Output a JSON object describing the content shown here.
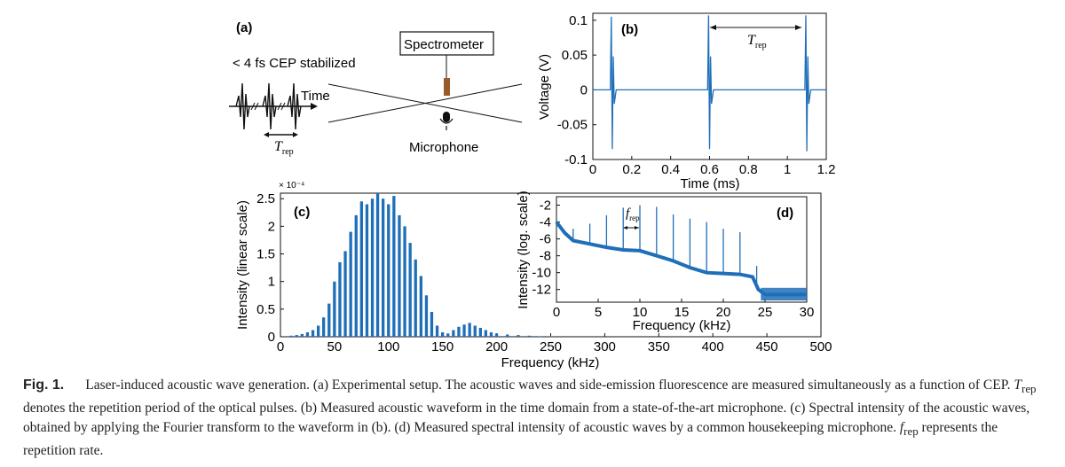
{
  "panel_a": {
    "label": "(a)",
    "cep_text": "< 4 fs CEP stabilized",
    "time_label": "Time",
    "trep_symbol": "T",
    "trep_sub": "rep",
    "spectrometer_label": "Spectrometer",
    "microphone_label": "Microphone",
    "icons": [
      "pulse-train-icon",
      "spectrometer-probe-icon",
      "microphone-icon"
    ]
  },
  "chart_data": [
    {
      "id": "b",
      "type": "line",
      "label": "(b)",
      "xlabel": "Time (ms)",
      "ylabel": "Voltage (V)",
      "xlim": [
        0,
        1.2
      ],
      "ylim": [
        -0.1,
        0.11
      ],
      "xticks": [
        "0",
        "0.2",
        "0.4",
        "0.6",
        "0.8",
        "1",
        "1.2"
      ],
      "yticks": [
        "0.1",
        "0.05",
        "0",
        "-0.05",
        "-0.1"
      ],
      "annotation": {
        "symbol": "T",
        "sub": "rep"
      },
      "series": [
        {
          "x": [
            0,
            0.09,
            0.095,
            0.1,
            0.105,
            0.11,
            0.12,
            0.59,
            0.595,
            0.6,
            0.605,
            0.61,
            0.62,
            1.09,
            1.095,
            1.1,
            1.105,
            1.11,
            1.12,
            1.2
          ],
          "y": [
            0,
            0,
            0.105,
            -0.085,
            0.048,
            -0.02,
            0,
            0,
            0.107,
            -0.085,
            0.048,
            -0.02,
            0,
            0,
            0.107,
            -0.088,
            0.048,
            -0.02,
            0,
            0
          ]
        }
      ],
      "color": "#1f6fb8"
    },
    {
      "id": "c",
      "type": "bar",
      "label": "(c)",
      "xlabel": "Frequency (kHz)",
      "ylabel": "Intensity (linear scale)",
      "y_exponent": "× 10⁻⁴",
      "xlim": [
        0,
        500
      ],
      "ylim": [
        0,
        2.6
      ],
      "xticks": [
        "0",
        "50",
        "100",
        "150",
        "200",
        "250",
        "300",
        "350",
        "400",
        "450",
        "500"
      ],
      "yticks": [
        "0",
        "0.5",
        "1",
        "1.5",
        "2",
        "2.5"
      ],
      "x": [
        10,
        15,
        20,
        25,
        30,
        35,
        40,
        45,
        50,
        55,
        60,
        65,
        70,
        75,
        80,
        85,
        90,
        95,
        100,
        105,
        110,
        115,
        120,
        125,
        130,
        135,
        140,
        145,
        150,
        155,
        160,
        165,
        170,
        175,
        180,
        185,
        190,
        195,
        200,
        210,
        220,
        230,
        240,
        250
      ],
      "values": [
        0.02,
        0.03,
        0.05,
        0.08,
        0.12,
        0.2,
        0.35,
        0.6,
        1.0,
        1.35,
        1.55,
        1.9,
        2.2,
        2.45,
        2.4,
        2.5,
        2.6,
        2.5,
        2.4,
        2.55,
        2.2,
        2.0,
        1.7,
        1.4,
        1.1,
        0.75,
        0.45,
        0.2,
        0.08,
        0.06,
        0.12,
        0.18,
        0.22,
        0.25,
        0.2,
        0.16,
        0.12,
        0.08,
        0.06,
        0.04,
        0.03,
        0.02,
        0.01,
        0.01
      ],
      "color": "#1f6fb8"
    },
    {
      "id": "d",
      "type": "line",
      "label": "(d)",
      "xlabel": "Frequency (kHz)",
      "ylabel": "Intensity (log. scale)",
      "xlim": [
        0,
        30
      ],
      "ylim": [
        -13.5,
        -1
      ],
      "xticks": [
        "0",
        "5",
        "10",
        "15",
        "20",
        "25",
        "30"
      ],
      "yticks": [
        "-2",
        "-4",
        "-6",
        "-8",
        "-10",
        "-12"
      ],
      "annotation": {
        "symbol": "f",
        "sub": "rep"
      },
      "baseline": {
        "x": [
          0,
          1,
          2,
          4,
          6,
          8,
          10,
          12,
          14,
          16,
          18,
          20,
          22,
          23.5,
          24.2,
          25,
          30
        ],
        "y": [
          -4.0,
          -5.3,
          -6.2,
          -6.6,
          -7.0,
          -7.3,
          -7.4,
          -8.0,
          -8.6,
          -9.4,
          -10.0,
          -10.1,
          -10.2,
          -10.5,
          -12.0,
          -12.6,
          -12.6
        ]
      },
      "peaks": {
        "x": [
          2,
          4,
          6,
          8,
          10,
          12,
          14,
          16,
          18,
          20,
          22,
          24
        ],
        "y": [
          -4.8,
          -4.2,
          -3.2,
          -2.3,
          -2.0,
          -2.2,
          -3.1,
          -3.6,
          -4.0,
          -4.8,
          -5.2,
          -9.2
        ]
      },
      "color": "#1f6fb8"
    }
  ],
  "caption": {
    "fig_label": "Fig. 1.",
    "text": "Laser-induced acoustic wave generation. (a) Experimental setup. The acoustic waves and side-emission fluorescence are measured simultaneously as a function of CEP. Tₑₑₚ denotes the repetition period of the optical pulses. (b) Measured acoustic waveform in the time domain from a state-of-the-art microphone. (c) Spectral intensity of the acoustic waves, obtained by applying the Fourier transform to the waveform in (b). (d) Measured spectral intensity of acoustic waves by a common housekeeping microphone. fₑₑₚ represents the repetition rate.",
    "trep_symbol": "T",
    "trep_sub": "rep",
    "frep_symbol": "f",
    "frep_sub": "rep",
    "part1": "Laser-induced acoustic wave generation. (a) Experimental setup. The acoustic waves and side-emission fluorescence are measured simultaneously as a function of CEP. ",
    "part2": " denotes the repetition period of the optical pulses. (b) Measured acoustic waveform in the time domain from a state-of-the-art microphone. (c) Spectral intensity of the acoustic waves, obtained by applying the Fourier transform to the waveform in (b). (d) Measured spectral intensity of acoustic waves by a common housekeeping microphone. ",
    "part3": " represents the repetition rate."
  }
}
